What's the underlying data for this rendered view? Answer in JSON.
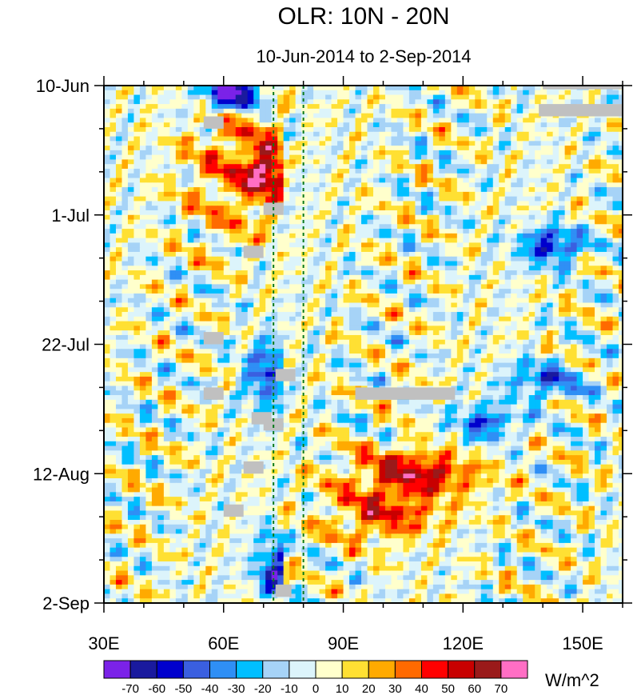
{
  "chart_data": {
    "type": "heatmap",
    "title": "OLR: 10N - 20N",
    "subtitle": "10-Jun-2014 to 2-Sep-2014",
    "xlabel": "",
    "ylabel": "",
    "x_range": [
      30,
      160
    ],
    "x_ticks": [
      {
        "value": 30,
        "label": "30E"
      },
      {
        "value": 60,
        "label": "60E"
      },
      {
        "value": 90,
        "label": "90E"
      },
      {
        "value": 120,
        "label": "120E"
      },
      {
        "value": 150,
        "label": "150E"
      }
    ],
    "time_range_days": [
      0,
      84
    ],
    "y_ticks": [
      {
        "value": 0,
        "label": "10-Jun"
      },
      {
        "value": 21,
        "label": "1-Jul"
      },
      {
        "value": 42,
        "label": "22-Jul"
      },
      {
        "value": 63,
        "label": "12-Aug"
      },
      {
        "value": 84,
        "label": "2-Sep"
      }
    ],
    "y_orientation": "time increases downward",
    "reference_lines_lon": [
      72.5,
      80
    ],
    "colorbar": {
      "levels": [
        -70,
        -60,
        -50,
        -40,
        -30,
        -20,
        -10,
        0,
        10,
        20,
        30,
        40,
        50,
        60,
        70
      ],
      "colors": [
        "#7b22e8",
        "#1a1a9e",
        "#0000cd",
        "#3a5fe0",
        "#2f8ff5",
        "#00bfff",
        "#a6d3f7",
        "#dcf4fb",
        "#ffffcc",
        "#ffe033",
        "#ffaa00",
        "#ff6a00",
        "#ff0000",
        "#c80000",
        "#9a1a1a",
        "#ff6ec4"
      ],
      "units": "W/m^2"
    },
    "missing_color": "#c0c0c0",
    "grid": false,
    "legend": "bottom"
  }
}
